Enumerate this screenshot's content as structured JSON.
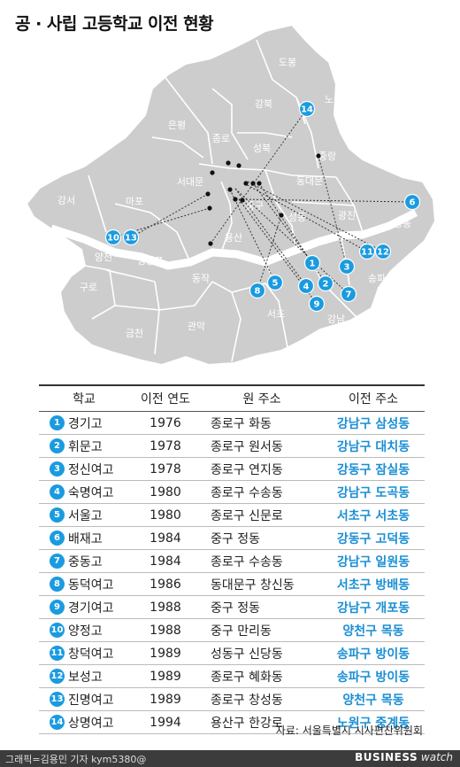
{
  "title": "공 · 사립 고등학교 이전 현황",
  "map": {
    "districts": [
      "도봉",
      "노원",
      "강북",
      "은평",
      "종로",
      "성북",
      "중랑",
      "서대문",
      "동대문",
      "강서",
      "마포",
      "중구",
      "성동",
      "광진",
      "강동",
      "양천",
      "영등포",
      "용산",
      "송파",
      "구로",
      "동작",
      "서초",
      "강남",
      "금천",
      "관악"
    ],
    "markers": [
      "1",
      "2",
      "3",
      "4",
      "5",
      "6",
      "7",
      "8",
      "9",
      "10",
      "11",
      "12",
      "13",
      "14"
    ]
  },
  "table": {
    "headers": [
      "학교",
      "이전 연도",
      "원 주소",
      "이전 주소"
    ],
    "rows": [
      {
        "num": "1",
        "school": "경기고",
        "year": "1976",
        "orig": "종로구 화동",
        "dest": "강남구 삼성동"
      },
      {
        "num": "2",
        "school": "휘문고",
        "year": "1978",
        "orig": "종로구 원서동",
        "dest": "강남구 대치동"
      },
      {
        "num": "3",
        "school": "정신여고",
        "year": "1978",
        "orig": "종로구 연지동",
        "dest": "강동구 잠실동"
      },
      {
        "num": "4",
        "school": "숙명여고",
        "year": "1980",
        "orig": "종로구 수송동",
        "dest": "강남구 도곡동"
      },
      {
        "num": "5",
        "school": "서울고",
        "year": "1980",
        "orig": "종로구 신문로",
        "dest": "서초구 서초동"
      },
      {
        "num": "6",
        "school": "배재고",
        "year": "1984",
        "orig": "중구 정동",
        "dest": "강동구 고덕동"
      },
      {
        "num": "7",
        "school": "중동고",
        "year": "1984",
        "orig": "종로구 수송동",
        "dest": "강남구 일원동"
      },
      {
        "num": "8",
        "school": "동덕여고",
        "year": "1986",
        "orig": "동대문구 창신동",
        "dest": "서초구 방배동"
      },
      {
        "num": "9",
        "school": "경기여고",
        "year": "1988",
        "orig": "중구 정동",
        "dest": "강남구 개포동"
      },
      {
        "num": "10",
        "school": "양정고",
        "year": "1988",
        "orig": "중구 만리동",
        "dest": "양천구 목동"
      },
      {
        "num": "11",
        "school": "창덕여고",
        "year": "1989",
        "orig": "성동구 신당동",
        "dest": "송파구 방이동"
      },
      {
        "num": "12",
        "school": "보성고",
        "year": "1989",
        "orig": "종로구 혜화동",
        "dest": "송파구 방이동"
      },
      {
        "num": "13",
        "school": "진명여고",
        "year": "1989",
        "orig": "종로구 창성동",
        "dest": "양천구 목동"
      },
      {
        "num": "14",
        "school": "상명여고",
        "year": "1994",
        "orig": "용산구 한강로",
        "dest": "노원구 중계동"
      }
    ]
  },
  "source": "자료: 서울특별시 시사편찬위원회",
  "footer": {
    "credit": "그래픽=김용민 기자 kym5380@",
    "brand_bold": "BUSINESS",
    "brand_italic": "watch"
  },
  "colors": {
    "accent": "#1a9be0",
    "district_fill": "#cdcdcd",
    "river": "#ffffff",
    "footer": "#3c3c3c"
  }
}
